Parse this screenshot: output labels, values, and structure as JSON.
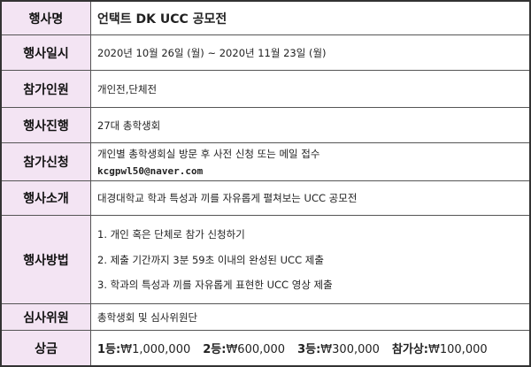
{
  "table": {
    "rows": [
      {
        "label": "행사명",
        "lines": [
          "언택트 DK UCC 공모전"
        ]
      },
      {
        "label": "행사일시",
        "lines": [
          "2020년 10월 26일 (월) ~ 2020년 11월 23일 (월)"
        ]
      },
      {
        "label": "참가인원",
        "lines": [
          "개인전,단체전"
        ]
      },
      {
        "label": "행사진행",
        "lines": [
          "27대 총학생회"
        ]
      },
      {
        "label": "참가신청",
        "lines": [
          "개인별 총학생회실 방문 후 사전 신청 또는 메일 접수"
        ],
        "email": "kcgpwl50@naver.com"
      },
      {
        "label": "행사소개",
        "lines": [
          "대경대학교 학과 특성과 끼를 자유롭게 펼쳐보는 UCC 공모전"
        ]
      },
      {
        "label": "행사방법",
        "lines": [
          "1. 개인 혹은 단체로 참가 신청하기",
          "2. 제출 기간까지 3분 59초 이내의 완성된 UCC 제출",
          "3. 학과의 특성과 끼를 자유롭게 표현한 UCC 영상 제출"
        ]
      },
      {
        "label": "심사위원",
        "lines": [
          "총학생회 및 심사위원단"
        ]
      },
      {
        "label": "상금",
        "prizes": [
          {
            "rank": "1등:",
            "amount": "₩1,000,000"
          },
          {
            "rank": "2등:",
            "amount": "₩600,000"
          },
          {
            "rank": "3등:",
            "amount": "₩300,000"
          },
          {
            "rank": "참가상:",
            "amount": "₩100,000"
          }
        ]
      }
    ]
  }
}
